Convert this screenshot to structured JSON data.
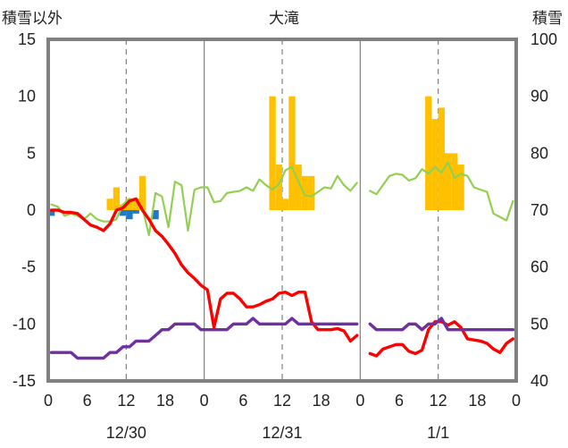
{
  "chart_data": {
    "type": "bar+line",
    "title": "大滝",
    "left_axis_label": "積雪以外",
    "right_axis_label": "積雪",
    "left_ylim": [
      -15,
      15
    ],
    "left_yticks": [
      15,
      10,
      5,
      0,
      -5,
      -10,
      -15
    ],
    "left_ytick_labels": [
      "15",
      "10",
      "5",
      "0",
      "-5",
      "-10",
      "-15"
    ],
    "right_ylim": [
      40,
      100
    ],
    "right_yticks": [
      100,
      90,
      80,
      70,
      60,
      50,
      40
    ],
    "right_ytick_labels": [
      "100",
      "90",
      "80",
      "70",
      "60",
      "50",
      "40"
    ],
    "x_tick_labels": [
      "0",
      "6",
      "12",
      "18",
      "0",
      "6",
      "12",
      "18",
      "0",
      "6",
      "12",
      "18",
      "0"
    ],
    "date_labels": [
      "12/30",
      "12/31",
      "1/1"
    ],
    "x_range_hours": [
      0,
      72
    ],
    "colors": {
      "snowfall": "#ffc000",
      "precip": "#1f78c8",
      "temperature": "#ff0000",
      "wind": "#92d050",
      "snow_depth": "#7030a0",
      "frame": "#808080",
      "grid": "#808080"
    },
    "series": [
      {
        "kind": "bar",
        "axis": "left",
        "color": "#ffc000",
        "points": [
          [
            9,
            1
          ],
          [
            10,
            2
          ],
          [
            11,
            0.5
          ],
          [
            12,
            1
          ],
          [
            13,
            1
          ],
          [
            14,
            3
          ],
          [
            34,
            10
          ],
          [
            35,
            4
          ],
          [
            36,
            1
          ],
          [
            37,
            10
          ],
          [
            38,
            4
          ],
          [
            39,
            3
          ],
          [
            40,
            3
          ],
          [
            58,
            10
          ],
          [
            59,
            8
          ],
          [
            60,
            9
          ],
          [
            61,
            5
          ],
          [
            62,
            5
          ],
          [
            63,
            4
          ]
        ]
      },
      {
        "kind": "bar",
        "axis": "left",
        "color": "#1f78c8",
        "points": [
          [
            0,
            -0.5
          ],
          [
            11,
            -0.5
          ],
          [
            12,
            -0.8
          ],
          [
            13,
            -0.3
          ],
          [
            16,
            -0.8
          ]
        ]
      },
      {
        "kind": "line",
        "axis": "left",
        "color": "#92d050",
        "segments": [
          [
            [
              0,
              0.5
            ],
            [
              1,
              0.3
            ],
            [
              2,
              -0.5
            ],
            [
              3,
              -0.3
            ],
            [
              4,
              -0.5
            ],
            [
              5,
              -0.8
            ],
            [
              6,
              -0.3
            ],
            [
              7,
              -0.8
            ],
            [
              8,
              -1
            ],
            [
              9,
              -1
            ],
            [
              10,
              -0.8
            ],
            [
              11,
              0.5
            ],
            [
              12,
              1
            ],
            [
              13,
              0.8
            ],
            [
              14,
              0.2
            ],
            [
              15,
              -2.2
            ],
            [
              16,
              1.5
            ],
            [
              17,
              1.2
            ],
            [
              18,
              -1.5
            ],
            [
              19,
              2.5
            ],
            [
              20,
              2.2
            ],
            [
              21,
              -1.8
            ],
            [
              22,
              1.8
            ],
            [
              23,
              2
            ],
            [
              24,
              2
            ],
            [
              25,
              0.7
            ],
            [
              26,
              0.8
            ],
            [
              27,
              1.5
            ],
            [
              28,
              1.6
            ],
            [
              29,
              1.7
            ],
            [
              30,
              2
            ],
            [
              31,
              1.7
            ],
            [
              32,
              2.7
            ],
            [
              33,
              2.2
            ],
            [
              34,
              1.8
            ],
            [
              35,
              2.3
            ],
            [
              36,
              3.5
            ],
            [
              37,
              3.8
            ],
            [
              38,
              2.5
            ],
            [
              39,
              1.3
            ],
            [
              40,
              1.2
            ],
            [
              41,
              1.6
            ],
            [
              42,
              2
            ],
            [
              43,
              1.9
            ],
            [
              44,
              3
            ],
            [
              45,
              2.2
            ],
            [
              46,
              1.7
            ],
            [
              47,
              2.4
            ]
          ],
          [
            [
              49,
              1.7
            ],
            [
              50,
              1.4
            ],
            [
              51,
              2.2
            ],
            [
              52,
              3
            ],
            [
              53,
              3.2
            ],
            [
              54,
              3.1
            ],
            [
              55,
              2.6
            ],
            [
              56,
              2.8
            ],
            [
              57,
              3.6
            ],
            [
              58,
              3.2
            ],
            [
              59,
              3.8
            ],
            [
              60,
              3.3
            ],
            [
              61,
              4.2
            ],
            [
              62,
              2.8
            ],
            [
              63,
              3.2
            ],
            [
              64,
              3
            ],
            [
              65,
              2
            ],
            [
              66,
              1.8
            ],
            [
              67,
              1.6
            ],
            [
              68,
              -0.3
            ],
            [
              69,
              -0.6
            ],
            [
              70,
              -0.9
            ],
            [
              71,
              0.8
            ]
          ]
        ]
      },
      {
        "kind": "line",
        "axis": "left",
        "color": "#ff0000",
        "segments": [
          [
            [
              0,
              0
            ],
            [
              1,
              0
            ],
            [
              2,
              -0.2
            ],
            [
              3,
              -0.2
            ],
            [
              4,
              -0.3
            ],
            [
              5,
              -0.8
            ],
            [
              6,
              -1.3
            ],
            [
              7,
              -1.5
            ],
            [
              8,
              -1.8
            ],
            [
              9,
              -1.2
            ],
            [
              10,
              0
            ],
            [
              11,
              0.2
            ],
            [
              12,
              0.8
            ],
            [
              13,
              1
            ],
            [
              14,
              0
            ],
            [
              15,
              -0.8
            ],
            [
              16,
              -1.8
            ],
            [
              17,
              -2.3
            ],
            [
              18,
              -3
            ],
            [
              19,
              -3.8
            ],
            [
              20,
              -4.8
            ],
            [
              21,
              -5.5
            ],
            [
              22,
              -6
            ],
            [
              23,
              -6.6
            ],
            [
              24,
              -7
            ],
            [
              25,
              -10.3
            ],
            [
              26,
              -7.8
            ],
            [
              27,
              -7.3
            ],
            [
              28,
              -7.3
            ],
            [
              29,
              -7.8
            ],
            [
              30,
              -8.5
            ],
            [
              31,
              -8.5
            ],
            [
              32,
              -8.3
            ],
            [
              33,
              -8
            ],
            [
              34,
              -7.8
            ],
            [
              35,
              -7.3
            ],
            [
              36,
              -7.2
            ],
            [
              37,
              -7.5
            ],
            [
              38,
              -7.2
            ],
            [
              39,
              -7.2
            ],
            [
              40,
              -9.8
            ],
            [
              41,
              -10.5
            ],
            [
              42,
              -10.5
            ],
            [
              43,
              -10.5
            ],
            [
              44,
              -10.4
            ],
            [
              45,
              -10.6
            ],
            [
              46,
              -11.5
            ],
            [
              47,
              -11
            ]
          ],
          [
            [
              49,
              -12.6
            ],
            [
              50,
              -12.8
            ],
            [
              51,
              -12.2
            ],
            [
              52,
              -12
            ],
            [
              53,
              -11.8
            ],
            [
              54,
              -11.8
            ],
            [
              55,
              -12.4
            ],
            [
              56,
              -12.6
            ],
            [
              57,
              -12.3
            ],
            [
              58,
              -10.5
            ],
            [
              59,
              -9.8
            ],
            [
              60,
              -9.8
            ],
            [
              61,
              -10.1
            ],
            [
              62,
              -9.8
            ],
            [
              63,
              -10.3
            ],
            [
              64,
              -11.3
            ],
            [
              65,
              -11.4
            ],
            [
              66,
              -11.5
            ],
            [
              67,
              -11.7
            ],
            [
              68,
              -12.2
            ],
            [
              69,
              -12.5
            ],
            [
              70,
              -11.7
            ],
            [
              71,
              -11.3
            ]
          ]
        ]
      },
      {
        "kind": "line",
        "axis": "right",
        "color": "#7030a0",
        "segments": [
          [
            [
              0,
              45
            ],
            [
              3,
              45
            ],
            [
              4,
              44
            ],
            [
              8,
              44
            ],
            [
              9,
              45
            ],
            [
              10,
              45
            ],
            [
              11,
              46
            ],
            [
              12,
              46
            ],
            [
              13,
              47
            ],
            [
              15,
              47
            ],
            [
              16,
              48
            ],
            [
              17,
              49
            ],
            [
              18,
              49
            ],
            [
              19,
              50
            ],
            [
              22,
              50
            ],
            [
              23,
              49
            ],
            [
              27,
              49
            ],
            [
              28,
              50
            ],
            [
              30,
              50
            ],
            [
              31,
              51
            ],
            [
              32,
              50
            ],
            [
              36,
              50
            ],
            [
              37,
              51
            ],
            [
              38,
              50
            ],
            [
              47,
              50
            ]
          ],
          [
            [
              49,
              50
            ],
            [
              50,
              49
            ],
            [
              54,
              49
            ],
            [
              55,
              50
            ],
            [
              56,
              50
            ],
            [
              57,
              49
            ],
            [
              58,
              50
            ],
            [
              59,
              50
            ],
            [
              60,
              51
            ],
            [
              61,
              49
            ],
            [
              62,
              49
            ],
            [
              71,
              49
            ]
          ]
        ]
      }
    ]
  }
}
